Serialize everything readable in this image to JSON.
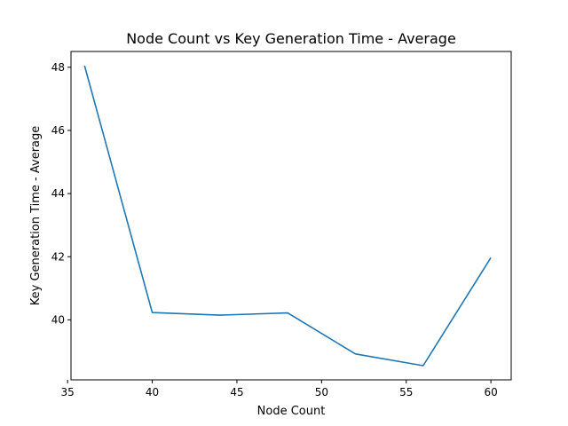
{
  "chart_data": {
    "type": "line",
    "title": "Node Count vs Key Generation Time - Average",
    "xlabel": "Node Count",
    "ylabel": "Key Generation Time - Average",
    "x": [
      36,
      40,
      44,
      48,
      52,
      56,
      60
    ],
    "series": [
      {
        "values": [
          48.05,
          40.23,
          40.15,
          40.22,
          38.92,
          38.55,
          41.97
        ],
        "color": "#1f77b4"
      }
    ],
    "xlim": [
      35.2,
      61.2
    ],
    "ylim": [
      38.1,
      48.5
    ],
    "xticks": [
      35,
      40,
      45,
      50,
      55,
      60
    ],
    "yticks": [
      40,
      42,
      44,
      46,
      48
    ],
    "grid": false,
    "legend": false
  }
}
